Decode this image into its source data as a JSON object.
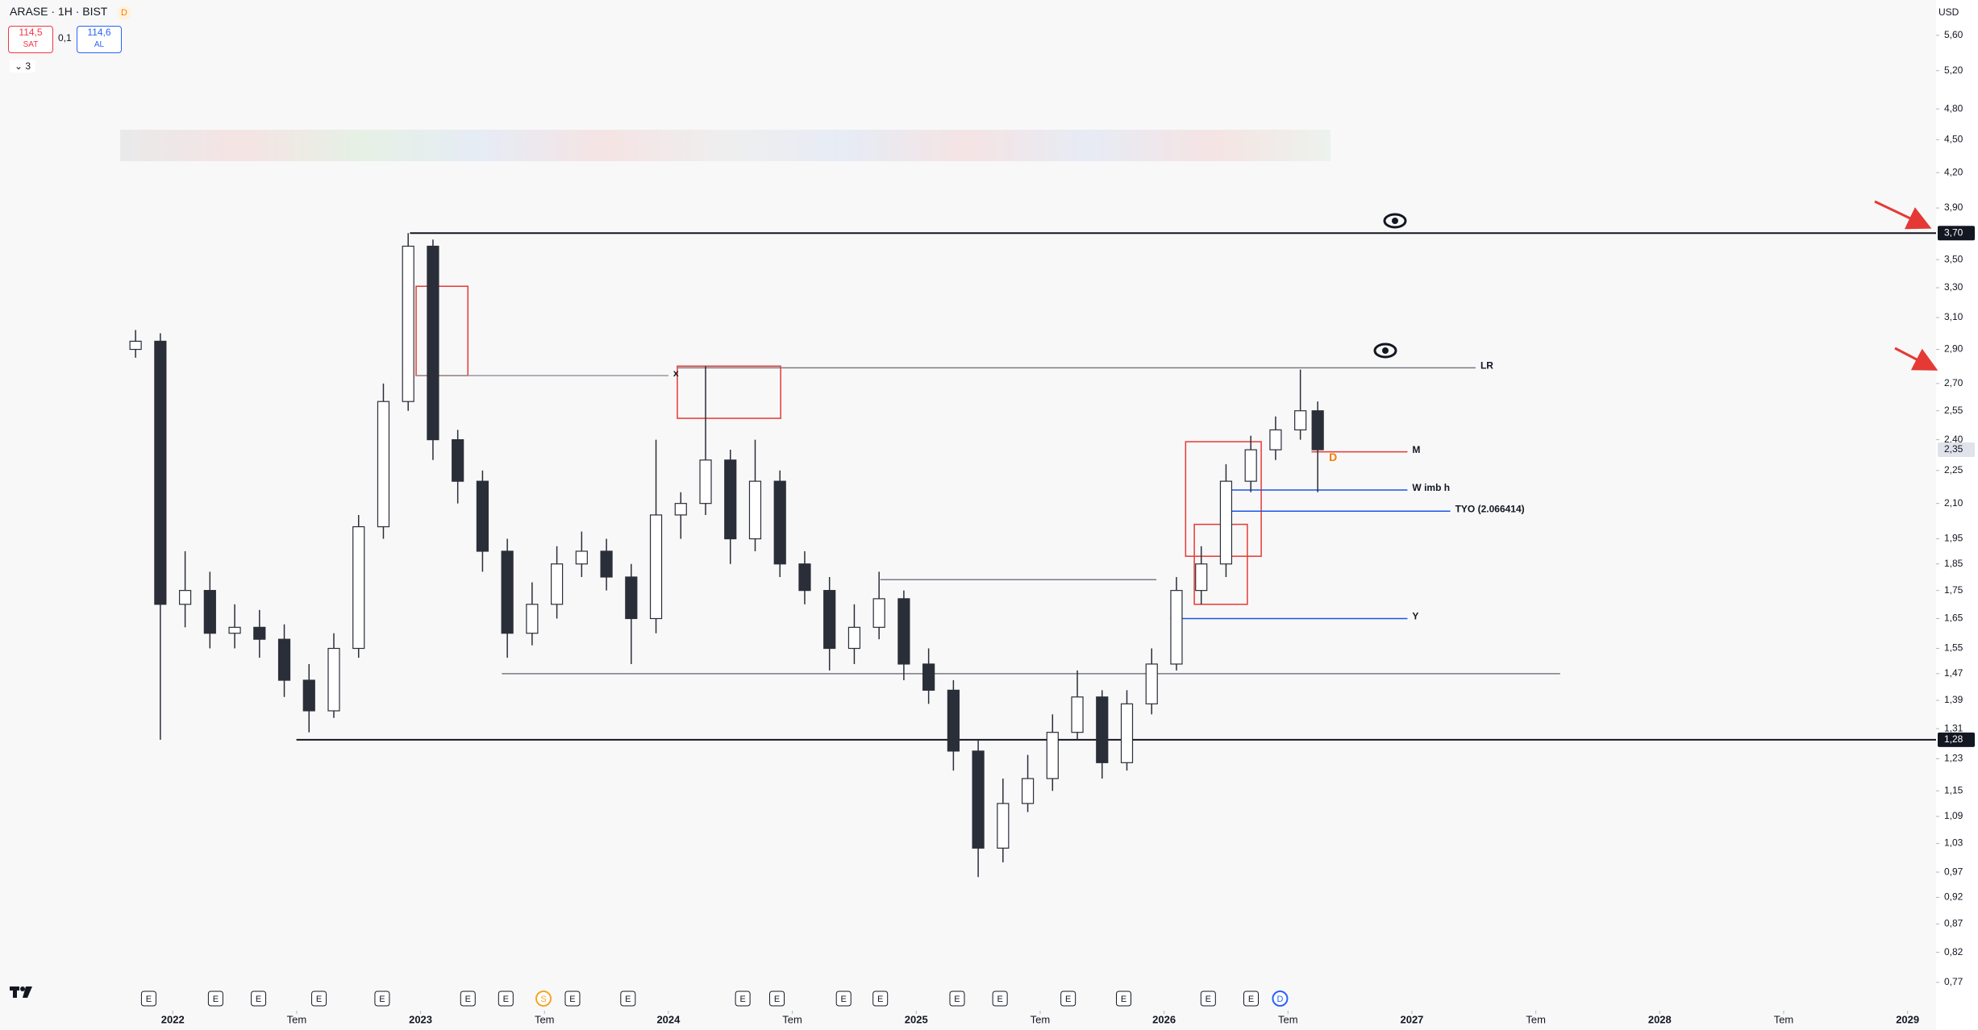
{
  "header": {
    "symbol": "ARASE · 1H · BIST",
    "badge": "D",
    "sell_price": "114,5",
    "sell_label": "SAT",
    "spread": "0,1",
    "buy_price": "114,6",
    "buy_label": "AL",
    "indicators": "3",
    "currency": "USD"
  },
  "chart_data": {
    "type": "candlestick",
    "log_scale": true,
    "grid": false,
    "up_color": "#ffffff",
    "down_color": "#2a2e39",
    "x": [
      2021.85,
      2021.95,
      2022.05,
      2022.15,
      2022.25,
      2022.35,
      2022.45,
      2022.55,
      2022.65,
      2022.75,
      2022.85,
      2022.95,
      2023.05,
      2023.15,
      2023.25,
      2023.35,
      2023.45,
      2023.55,
      2023.65,
      2023.75,
      2023.85,
      2023.95,
      2024.05,
      2024.15,
      2024.25,
      2024.35,
      2024.45,
      2024.55,
      2024.65,
      2024.75,
      2024.85,
      2024.95,
      2025.05,
      2025.15,
      2025.25,
      2025.35,
      2025.45,
      2025.55,
      2025.65,
      2025.75,
      2025.85,
      2025.95,
      2026.05,
      2026.15,
      2026.25,
      2026.35,
      2026.45,
      2026.55,
      2026.62
    ],
    "open": [
      2.9,
      2.95,
      1.7,
      1.75,
      1.6,
      1.62,
      1.58,
      1.45,
      1.36,
      1.55,
      2.0,
      2.6,
      3.6,
      2.4,
      2.2,
      1.9,
      1.6,
      1.7,
      1.85,
      1.9,
      1.8,
      1.65,
      2.05,
      2.1,
      2.3,
      1.95,
      2.2,
      1.85,
      1.75,
      1.55,
      1.62,
      1.72,
      1.5,
      1.42,
      1.25,
      1.02,
      1.12,
      1.18,
      1.3,
      1.4,
      1.22,
      1.38,
      1.5,
      1.75,
      1.85,
      2.2,
      2.35,
      2.45,
      2.55
    ],
    "high": [
      3.02,
      3.0,
      1.9,
      1.82,
      1.7,
      1.68,
      1.63,
      1.5,
      1.6,
      2.05,
      2.7,
      3.7,
      3.65,
      2.45,
      2.25,
      1.95,
      1.78,
      1.92,
      1.98,
      1.95,
      1.85,
      2.4,
      2.15,
      2.8,
      2.35,
      2.4,
      2.25,
      1.9,
      1.8,
      1.7,
      1.82,
      1.75,
      1.55,
      1.45,
      1.28,
      1.18,
      1.24,
      1.35,
      1.48,
      1.42,
      1.42,
      1.55,
      1.8,
      1.92,
      2.28,
      2.42,
      2.52,
      2.78,
      2.6
    ],
    "low": [
      2.85,
      1.28,
      1.62,
      1.55,
      1.55,
      1.52,
      1.4,
      1.3,
      1.34,
      1.52,
      1.95,
      2.55,
      2.3,
      2.1,
      1.82,
      1.52,
      1.56,
      1.65,
      1.8,
      1.75,
      1.5,
      1.6,
      1.95,
      2.05,
      1.85,
      1.9,
      1.8,
      1.7,
      1.48,
      1.5,
      1.58,
      1.45,
      1.38,
      1.2,
      0.96,
      0.99,
      1.1,
      1.15,
      1.28,
      1.18,
      1.2,
      1.35,
      1.48,
      1.7,
      1.8,
      2.15,
      2.3,
      2.4,
      2.15
    ],
    "close": [
      2.95,
      1.7,
      1.75,
      1.6,
      1.62,
      1.58,
      1.45,
      1.36,
      1.55,
      2.0,
      2.6,
      3.6,
      2.4,
      2.2,
      1.9,
      1.6,
      1.7,
      1.85,
      1.9,
      1.8,
      1.65,
      2.05,
      2.1,
      2.3,
      1.95,
      2.2,
      1.85,
      1.75,
      1.55,
      1.62,
      1.72,
      1.5,
      1.42,
      1.25,
      1.02,
      1.12,
      1.18,
      1.3,
      1.4,
      1.22,
      1.38,
      1.5,
      1.75,
      1.85,
      2.2,
      2.35,
      2.45,
      2.55,
      2.35
    ],
    "xlim": [
      2021.303,
      2029.115
    ],
    "ylim": [
      0.733,
      6.03
    ],
    "xticks": [
      {
        "value": 2022,
        "label": "2022"
      },
      {
        "value": 2022.5,
        "label": "Tem"
      },
      {
        "value": 2023,
        "label": "2023"
      },
      {
        "value": 2023.5,
        "label": "Tem"
      },
      {
        "value": 2024,
        "label": "2024"
      },
      {
        "value": 2024.5,
        "label": "Tem"
      },
      {
        "value": 2025,
        "label": "2025"
      },
      {
        "value": 2025.5,
        "label": "Tem"
      },
      {
        "value": 2026,
        "label": "2026"
      },
      {
        "value": 2026.5,
        "label": "Tem"
      },
      {
        "value": 2027,
        "label": "2027"
      },
      {
        "value": 2027.5,
        "label": "Tem"
      },
      {
        "value": 2028,
        "label": "2028"
      },
      {
        "value": 2028.5,
        "label": "Tem"
      },
      {
        "value": 2029,
        "label": "2029"
      }
    ],
    "yticks": [
      {
        "value": 5.6,
        "label": "5,60"
      },
      {
        "value": 5.2,
        "label": "5,20"
      },
      {
        "value": 4.8,
        "label": "4,80"
      },
      {
        "value": 4.5,
        "label": "4,50"
      },
      {
        "value": 4.2,
        "label": "4,20"
      },
      {
        "value": 3.9,
        "label": "3,90"
      },
      {
        "value": 3.5,
        "label": "3,50"
      },
      {
        "value": 3.3,
        "label": "3,30"
      },
      {
        "value": 3.1,
        "label": "3,10"
      },
      {
        "value": 2.9,
        "label": "2,90"
      },
      {
        "value": 2.7,
        "label": "2,70"
      },
      {
        "value": 2.55,
        "label": "2,55"
      },
      {
        "value": 2.4,
        "label": "2,40"
      },
      {
        "value": 2.25,
        "label": "2,25"
      },
      {
        "value": 2.1,
        "label": "2,10"
      },
      {
        "value": 1.95,
        "label": "1,95"
      },
      {
        "value": 1.85,
        "label": "1,85"
      },
      {
        "value": 1.75,
        "label": "1,75"
      },
      {
        "value": 1.65,
        "label": "1,65"
      },
      {
        "value": 1.55,
        "label": "1,55"
      },
      {
        "value": 1.47,
        "label": "1,47"
      },
      {
        "value": 1.39,
        "label": "1,39"
      },
      {
        "value": 1.31,
        "label": "1,31"
      },
      {
        "value": 1.23,
        "label": "1,23"
      },
      {
        "value": 1.15,
        "label": "1,15"
      },
      {
        "value": 1.09,
        "label": "1,09"
      },
      {
        "value": 1.03,
        "label": "1,03"
      },
      {
        "value": 0.97,
        "label": "0,97"
      },
      {
        "value": 0.92,
        "label": "0,92"
      },
      {
        "value": 0.87,
        "label": "0,87"
      },
      {
        "value": 0.82,
        "label": "0,82"
      },
      {
        "value": 0.77,
        "label": "0,77"
      }
    ],
    "levels": [
      {
        "value": 3.7,
        "label": "3,70",
        "x0": 2022.957
      },
      {
        "value": 1.28,
        "label": "1,28",
        "x0": 2022.499
      }
    ],
    "last_price": {
      "value": 2.35,
      "label": "2,35"
    },
    "lines": [
      {
        "value": 2.79,
        "x0": 2024.036,
        "x1": 2027.257,
        "label": "LR",
        "color": "#787b86"
      },
      {
        "value": 2.745,
        "x0": 2022.982,
        "x1": 2024.0,
        "label": "x",
        "color": "#9598a1"
      },
      {
        "value": 1.47,
        "x0": 2023.328,
        "x1": 2027.598,
        "color": "#787b86"
      },
      {
        "value": 1.79,
        "x0": 2024.855,
        "x1": 2025.969,
        "color": "#787b86"
      },
      {
        "value": 2.34,
        "x0": 2026.595,
        "x1": 2026.982,
        "label": "M",
        "color": "#e53935"
      },
      {
        "value": 2.16,
        "x0": 2026.265,
        "x1": 2026.982,
        "label": "W imb h",
        "color": "#1e53e5"
      },
      {
        "value": 2.066414,
        "x0": 2026.265,
        "x1": 2027.155,
        "label": "TYO (2.066414)",
        "color": "#1e53e5"
      },
      {
        "value": 1.65,
        "x0": 2026.025,
        "x1": 2026.982,
        "label": "Y",
        "color": "#1e53e5"
      }
    ],
    "zones": [
      {
        "x0": 2022.982,
        "x1": 2023.191,
        "y0": 2.745,
        "y1": 3.31
      },
      {
        "x0": 2024.036,
        "x1": 2024.453,
        "y0": 2.51,
        "y1": 2.8
      },
      {
        "x0": 2026.087,
        "x1": 2026.392,
        "y0": 1.88,
        "y1": 2.39
      },
      {
        "x0": 2026.122,
        "x1": 2026.336,
        "y0": 1.7,
        "y1": 2.01
      }
    ],
    "annotations": [
      {
        "text": "D",
        "color": "#f57c00"
      }
    ],
    "events": [
      {
        "label": "E",
        "x": 2021.903
      },
      {
        "label": "E",
        "x": 2022.173
      },
      {
        "label": "E",
        "x": 2022.346
      },
      {
        "label": "E",
        "x": 2022.59
      },
      {
        "label": "E",
        "x": 2022.845
      },
      {
        "label": "E",
        "x": 2023.191
      },
      {
        "label": "E",
        "x": 2023.344
      },
      {
        "label": "S",
        "x": 2023.496,
        "color": "#f5a623"
      },
      {
        "label": "E",
        "x": 2023.613
      },
      {
        "label": "E",
        "x": 2023.837
      },
      {
        "label": "E",
        "x": 2024.3
      },
      {
        "label": "E",
        "x": 2024.438
      },
      {
        "label": "E",
        "x": 2024.707
      },
      {
        "label": "E",
        "x": 2024.855
      },
      {
        "label": "E",
        "x": 2025.165
      },
      {
        "label": "E",
        "x": 2025.338
      },
      {
        "label": "E",
        "x": 2025.613
      },
      {
        "label": "E",
        "x": 2025.837
      },
      {
        "label": "E",
        "x": 2026.178
      },
      {
        "label": "E",
        "x": 2026.351
      },
      {
        "label": "D",
        "x": 2026.468,
        "color": "#2962ff"
      }
    ]
  }
}
